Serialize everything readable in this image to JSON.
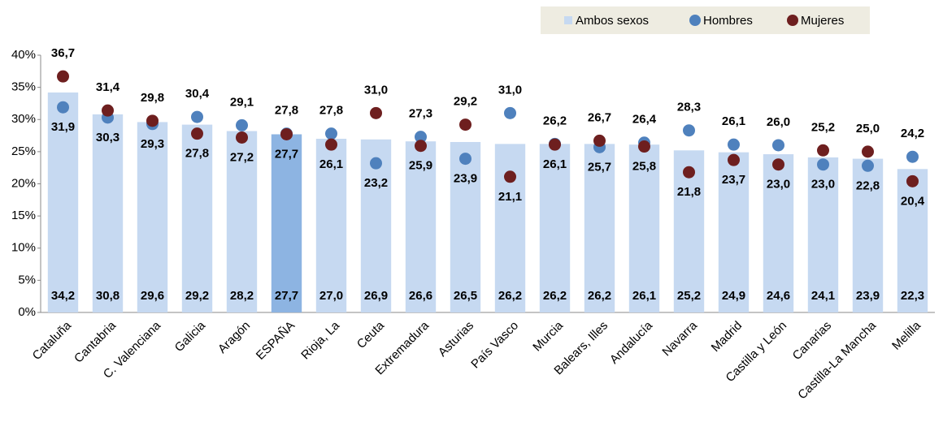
{
  "chart_data": {
    "type": "bar_dot",
    "categories": [
      "Cataluña",
      "Cantabria",
      "C. Valenciana",
      "Galicia",
      "Aragón",
      "ESPAÑA",
      "Rioja, La",
      "Ceuta",
      "Extremadura",
      "Asturias",
      "País Vasco",
      "Murcia",
      "Balears, Illes",
      "Andalucía",
      "Navarra",
      "Madrid",
      "Castilla y León",
      "Canarias",
      "Castilla-La Mancha",
      "Melilla"
    ],
    "series": [
      {
        "name": "Ambos sexos",
        "color": "#c6d9f1",
        "colors": [
          "#c6d9f1",
          "#c6d9f1",
          "#c6d9f1",
          "#c6d9f1",
          "#c6d9f1",
          "#8db4e2",
          "#c6d9f1",
          "#c6d9f1",
          "#c6d9f1",
          "#c6d9f1",
          "#c6d9f1",
          "#c6d9f1",
          "#c6d9f1",
          "#c6d9f1",
          "#c6d9f1",
          "#c6d9f1",
          "#c6d9f1",
          "#c6d9f1",
          "#c6d9f1",
          "#c6d9f1"
        ],
        "label_color": "#404040",
        "values": [
          34.2,
          30.8,
          29.6,
          29.2,
          28.2,
          27.7,
          27.0,
          26.9,
          26.6,
          26.5,
          26.2,
          26.2,
          26.2,
          26.1,
          25.2,
          24.9,
          24.6,
          24.1,
          23.9,
          22.3
        ],
        "value_labels": [
          "34,2",
          "30,8",
          "29,6",
          "29,2",
          "28,2",
          "27,7",
          "27,0",
          "26,9",
          "26,6",
          "26,5",
          "26,2",
          "26,2",
          "26,2",
          "26,1",
          "25,2",
          "24,9",
          "24,6",
          "24,1",
          "23,9",
          "22,3"
        ]
      },
      {
        "name": "Hombres",
        "color": "#4f81bd",
        "label_color": "#243f60",
        "values": [
          31.9,
          30.3,
          29.3,
          30.4,
          29.1,
          27.8,
          27.8,
          23.2,
          27.3,
          23.9,
          31.0,
          26.2,
          25.7,
          26.4,
          28.3,
          26.1,
          26.0,
          23.0,
          22.8,
          24.2
        ],
        "value_labels": [
          "31,9",
          "30,3",
          "29,3",
          "30,4",
          "29,1",
          "27,8",
          "27,8",
          "23,2",
          "27,3",
          "23,9",
          "31,0",
          "26,2",
          "25,7",
          "26,4",
          "28,3",
          "26,1",
          "26,0",
          "23,0",
          "22,8",
          "24,2"
        ]
      },
      {
        "name": "Mujeres",
        "color": "#6e1f1f",
        "label_color": "#632523",
        "values": [
          36.7,
          31.4,
          29.8,
          27.8,
          27.2,
          27.7,
          26.1,
          31.0,
          25.9,
          29.2,
          21.1,
          26.1,
          26.7,
          25.8,
          21.8,
          23.7,
          23.0,
          25.2,
          25.0,
          20.4
        ],
        "value_labels": [
          "36,7",
          "31,4",
          "29,8",
          "27,8",
          "27,2",
          "27,7",
          "26,1",
          "31,0",
          "25,9",
          "29,2",
          "21,1",
          "26,1",
          "26,7",
          "25,8",
          "21,8",
          "23,7",
          "23,0",
          "25,2",
          "25,0",
          "20,4"
        ]
      }
    ],
    "ylim": [
      0,
      40
    ],
    "yticks": [
      {
        "value": 0,
        "label": "0%"
      },
      {
        "value": 5,
        "label": "5%"
      },
      {
        "value": 10,
        "label": "10%"
      },
      {
        "value": 15,
        "label": "15%"
      },
      {
        "value": 20,
        "label": "20%"
      },
      {
        "value": 25,
        "label": "25%"
      },
      {
        "value": 30,
        "label": "30%"
      },
      {
        "value": 35,
        "label": "35%"
      },
      {
        "value": 40,
        "label": "40%"
      }
    ],
    "legend": "top-right",
    "grid": false
  }
}
